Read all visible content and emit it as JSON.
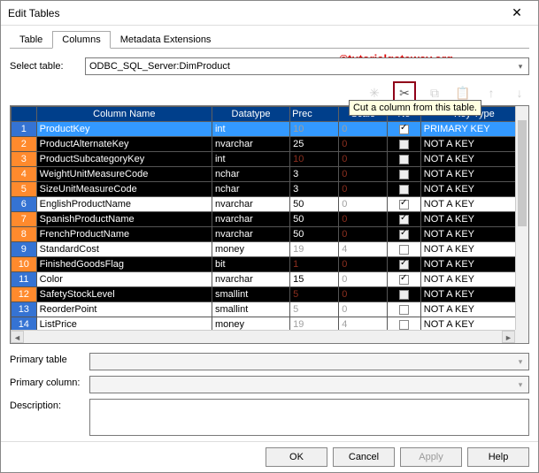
{
  "window": {
    "title": "Edit Tables",
    "close": "✕"
  },
  "watermark": "©tutorialgateway.org",
  "tabs": [
    {
      "label": "Table",
      "active": false
    },
    {
      "label": "Columns",
      "active": true
    },
    {
      "label": "Metadata Extensions",
      "active": false
    }
  ],
  "select_table": {
    "label": "Select table:",
    "value": "ODBC_SQL_Server:DimProduct"
  },
  "toolbar": {
    "cut_tooltip": "Cut a column from this table.",
    "icons": {
      "new": "✳",
      "cut": "✂",
      "copy": "⧉",
      "paste": "📋",
      "up": "↑",
      "down": "↓"
    }
  },
  "headers": {
    "idx": "",
    "name": "Column Name",
    "type": "Datatype",
    "prec": "Prec",
    "scale": "Scale",
    "nn": "No",
    "key": "Key Type"
  },
  "rows": [
    {
      "n": "1",
      "name": "ProductKey",
      "type": "int",
      "prec": "10",
      "scale": "0",
      "prec_dim": true,
      "scale_dim": true,
      "nn": true,
      "key": "PRIMARY KEY",
      "sel": true,
      "band": "even"
    },
    {
      "n": "2",
      "name": "ProductAlternateKey",
      "type": "nvarchar",
      "prec": "25",
      "scale": "0",
      "prec_dim": false,
      "scale_dim": true,
      "nn": false,
      "key": "NOT A KEY",
      "band": "odd"
    },
    {
      "n": "3",
      "name": "ProductSubcategoryKey",
      "type": "int",
      "prec": "10",
      "scale": "0",
      "prec_dim": true,
      "scale_dim": true,
      "nn": false,
      "key": "NOT A KEY",
      "band": "odd"
    },
    {
      "n": "4",
      "name": "WeightUnitMeasureCode",
      "type": "nchar",
      "prec": "3",
      "scale": "0",
      "prec_dim": false,
      "scale_dim": true,
      "nn": false,
      "key": "NOT A KEY",
      "band": "odd"
    },
    {
      "n": "5",
      "name": "SizeUnitMeasureCode",
      "type": "nchar",
      "prec": "3",
      "scale": "0",
      "prec_dim": false,
      "scale_dim": true,
      "nn": false,
      "key": "NOT A KEY",
      "band": "odd"
    },
    {
      "n": "6",
      "name": "EnglishProductName",
      "type": "nvarchar",
      "prec": "50",
      "scale": "0",
      "prec_dim": false,
      "scale_dim": true,
      "nn": true,
      "key": "NOT A KEY",
      "band": "even"
    },
    {
      "n": "7",
      "name": "SpanishProductName",
      "type": "nvarchar",
      "prec": "50",
      "scale": "0",
      "prec_dim": false,
      "scale_dim": true,
      "nn": true,
      "key": "NOT A KEY",
      "band": "odd"
    },
    {
      "n": "8",
      "name": "FrenchProductName",
      "type": "nvarchar",
      "prec": "50",
      "scale": "0",
      "prec_dim": false,
      "scale_dim": true,
      "nn": true,
      "key": "NOT A KEY",
      "band": "odd"
    },
    {
      "n": "9",
      "name": "StandardCost",
      "type": "money",
      "prec": "19",
      "scale": "4",
      "prec_dim": true,
      "scale_dim": true,
      "nn": false,
      "key": "NOT A KEY",
      "band": "even"
    },
    {
      "n": "10",
      "name": "FinishedGoodsFlag",
      "type": "bit",
      "prec": "1",
      "scale": "0",
      "prec_dim": true,
      "scale_dim": true,
      "nn": true,
      "key": "NOT A KEY",
      "band": "odd"
    },
    {
      "n": "11",
      "name": "Color",
      "type": "nvarchar",
      "prec": "15",
      "scale": "0",
      "prec_dim": false,
      "scale_dim": true,
      "nn": true,
      "key": "NOT A KEY",
      "band": "even"
    },
    {
      "n": "12",
      "name": "SafetyStockLevel",
      "type": "smallint",
      "prec": "5",
      "scale": "0",
      "prec_dim": true,
      "scale_dim": true,
      "nn": false,
      "key": "NOT A KEY",
      "band": "odd"
    },
    {
      "n": "13",
      "name": "ReorderPoint",
      "type": "smallint",
      "prec": "5",
      "scale": "0",
      "prec_dim": true,
      "scale_dim": true,
      "nn": false,
      "key": "NOT A KEY",
      "band": "even"
    },
    {
      "n": "14",
      "name": "ListPrice",
      "type": "money",
      "prec": "19",
      "scale": "4",
      "prec_dim": true,
      "scale_dim": true,
      "nn": false,
      "key": "NOT A KEY",
      "band": "even"
    }
  ],
  "bottom": {
    "primary_table": {
      "label": "Primary table",
      "value": ""
    },
    "primary_column": {
      "label": "Primary column:",
      "value": ""
    },
    "description": {
      "label": "Description:",
      "value": ""
    }
  },
  "buttons": {
    "ok": "OK",
    "cancel": "Cancel",
    "apply": "Apply",
    "help": "Help"
  }
}
